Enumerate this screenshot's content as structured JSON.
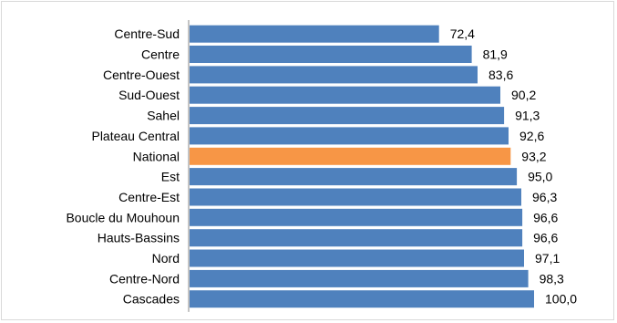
{
  "chart_data": {
    "type": "bar",
    "orientation": "horizontal",
    "title": "",
    "xlabel": "",
    "ylabel": "",
    "xlim": [
      0,
      100
    ],
    "grid": false,
    "legend": "none",
    "categories": [
      "Centre-Sud",
      "Centre",
      "Centre-Ouest",
      "Sud-Ouest",
      "Sahel",
      "Plateau Central",
      "National",
      "Est",
      "Centre-Est",
      "Boucle du Mouhoun",
      "Hauts-Bassins",
      "Nord",
      "Centre-Nord",
      "Cascades"
    ],
    "values": [
      72.4,
      81.9,
      83.6,
      90.2,
      91.3,
      92.6,
      93.2,
      95.0,
      96.3,
      96.6,
      96.6,
      97.1,
      98.3,
      100.0
    ],
    "value_labels": [
      "72,4",
      "81,9",
      "83,6",
      "90,2",
      "91,3",
      "92,6",
      "93,2",
      "95,0",
      "96,3",
      "96,6",
      "96,6",
      "97,1",
      "98,3",
      "100,0"
    ],
    "colors": {
      "default_bar": "#4f81bd",
      "highlight_bar": "#f79646",
      "highlight_category": "National",
      "axis": "#888888"
    }
  }
}
